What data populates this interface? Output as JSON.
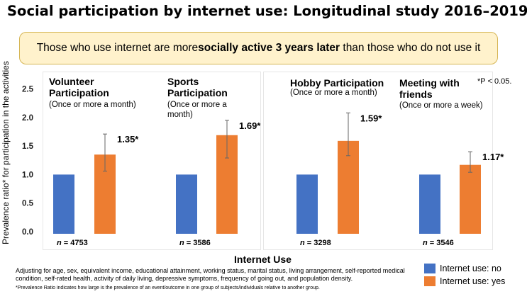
{
  "title": "Social participation by internet use: Longitudinal study 2016–2019",
  "banner": {
    "before": "Those who use internet are more ",
    "bold": "socially active 3 years later",
    "after": " than those who do not use it"
  },
  "significance_note": "*P < 0.05.",
  "x_axis_title": "Internet Use",
  "footnote": "Adjusting for age, sex, equivalent income, educational attainment, working status, marital status, living arrangement, self-reported medical condition, self-rated health, activity of daily living, depressive symptoms, frequency of going out, and population density.",
  "footnote2": "*Prevalence Ratio indicates how large is the prevalence of an event/outcome in one group of subjects/individuals relative to another group.",
  "legend": [
    {
      "label": "Internet use: no",
      "color": "#4472c4"
    },
    {
      "label": "Internet use: yes",
      "color": "#ed7d31"
    }
  ],
  "chart_data": {
    "type": "bar",
    "ylabel": "Prevalence ratio* for participation in the activities",
    "xlabel": "Internet Use",
    "ylim": [
      0,
      2.5
    ],
    "yticks": [
      "0.0",
      "0.5",
      "1.0",
      "1.5",
      "2.0",
      "2.5"
    ],
    "series": [
      {
        "name": "Internet use: no",
        "color": "#4472c4"
      },
      {
        "name": "Internet use: yes",
        "color": "#ed7d31"
      }
    ],
    "panels": [
      {
        "title": "Volunteer Participation",
        "subtitle": "(Once or more a month)",
        "values": [
          1.0,
          1.35
        ],
        "ci_low": 1.06,
        "ci_high": 1.71,
        "label": "1.35*",
        "n": "4753"
      },
      {
        "title": "Sports Participation",
        "subtitle": "(Once or more a month)",
        "values": [
          1.0,
          1.69
        ],
        "ci_low": 1.29,
        "ci_high": 1.95,
        "label": "1.69*",
        "n": "3586"
      },
      {
        "title": "Hobby Participation",
        "subtitle": "(Once or more a month)",
        "values": [
          1.0,
          1.59
        ],
        "ci_low": 1.33,
        "ci_high": 2.08,
        "label": "1.59*",
        "n": "3298"
      },
      {
        "title": "Meeting with friends",
        "subtitle": "(Once or more a week)",
        "values": [
          1.0,
          1.17
        ],
        "ci_low": 1.04,
        "ci_high": 1.4,
        "label": "1.17*",
        "n": "3546"
      }
    ]
  }
}
